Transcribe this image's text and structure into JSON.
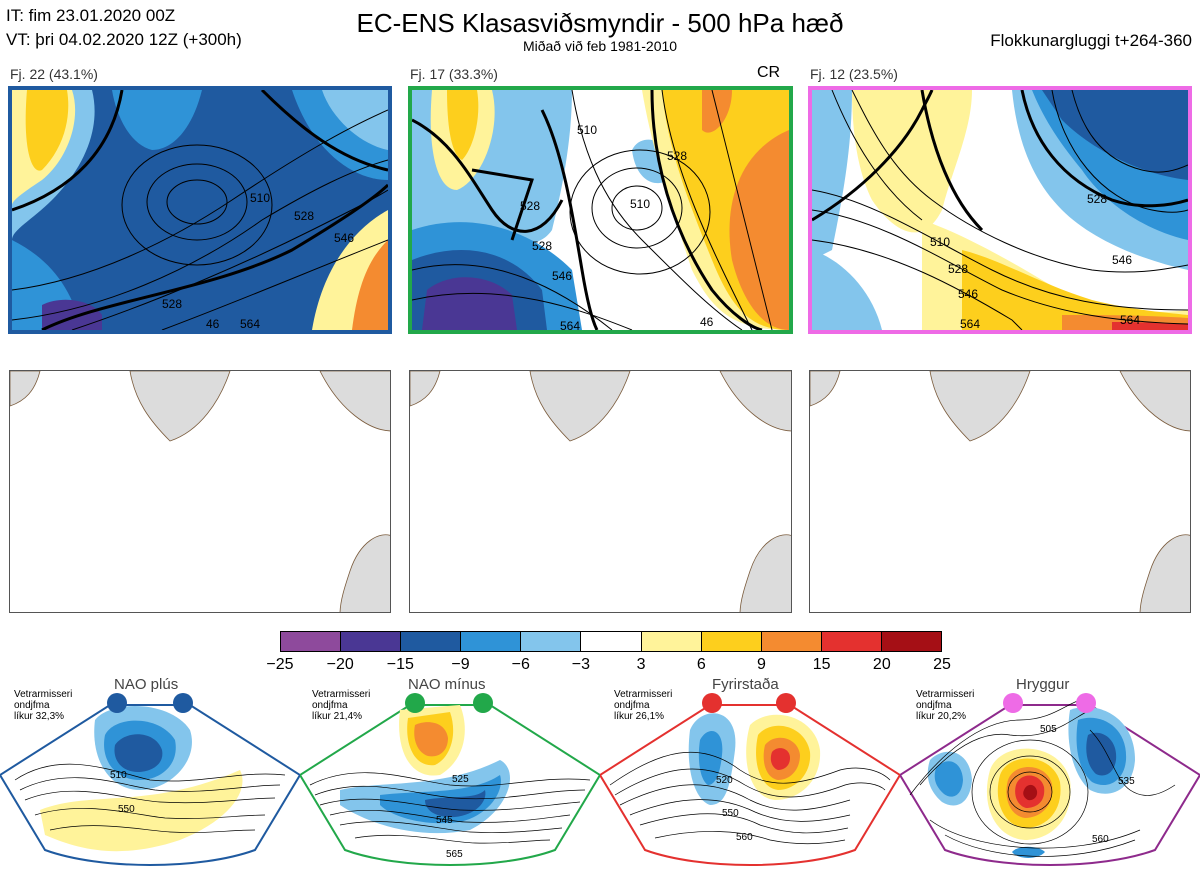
{
  "header": {
    "it_line": "IT: fim 23.01.2020 00Z",
    "vt_line": "VT: þri 04.02.2020 12Z  (+300h)",
    "title": "EC-ENS Klasasviðsmyndir - 500 hPa hæð",
    "subtitle": "Miðað við feb 1981-2010",
    "right": "Flokkunargluggi t+264-360"
  },
  "clusters": [
    {
      "label": "Fj. 22 (43.1%)",
      "tag": "",
      "border_color": "#1f5aa0",
      "contours": [
        "528",
        "510",
        "528",
        "546",
        "564",
        "46"
      ]
    },
    {
      "label": "Fj. 17 (33.3%)",
      "tag": "CR",
      "border_color": "#22a84a",
      "contours": [
        "510",
        "510",
        "528",
        "528",
        "528",
        "546",
        "564",
        "46"
      ]
    },
    {
      "label": "Fj. 12 (23.5%)",
      "tag": "",
      "border_color": "#ee6be6",
      "contours": [
        "528",
        "510",
        "528",
        "546",
        "546",
        "564",
        "564"
      ]
    }
  ],
  "colorbar": {
    "colors": [
      "#8e4a9c",
      "#4a3794",
      "#1f5aa0",
      "#2f93d7",
      "#83c5ec",
      "#ffffff",
      "#fff39a",
      "#fdcf1d",
      "#f48b30",
      "#e4312f",
      "#a50f15"
    ],
    "ticks": [
      "−25",
      "−20",
      "−15",
      "−9",
      "−6",
      "−3",
      "3",
      "6",
      "9",
      "15",
      "20",
      "25"
    ]
  },
  "regimes": [
    {
      "name": "NAO plús",
      "lines": [
        "Vetrarmisseri",
        "ondjfma",
        "líkur 32,3%"
      ],
      "dot_color": "#1f5aa0",
      "border_color": "#1f5aa0",
      "labels": [
        "510",
        "550"
      ]
    },
    {
      "name": "NAO mínus",
      "lines": [
        "Vetrarmisseri",
        "ondjfma",
        "líkur 21,4%"
      ],
      "dot_color": "#22a84a",
      "border_color": "#22a84a",
      "labels": [
        "525",
        "545",
        "565"
      ]
    },
    {
      "name": "Fyrirstaða",
      "lines": [
        "Vetrarmisseri",
        "ondjfma",
        "líkur 26,1%"
      ],
      "dot_color": "#e4312f",
      "border_color": "#e4312f",
      "labels": [
        "520",
        "550",
        "560"
      ]
    },
    {
      "name": "Hryggur",
      "lines": [
        "Vetrarmisseri",
        "ondjfma",
        "líkur 20,2%"
      ],
      "dot_color": "#ee6be6",
      "border_color": "#8e2a8c",
      "labels": [
        "505",
        "535",
        "560"
      ]
    }
  ]
}
